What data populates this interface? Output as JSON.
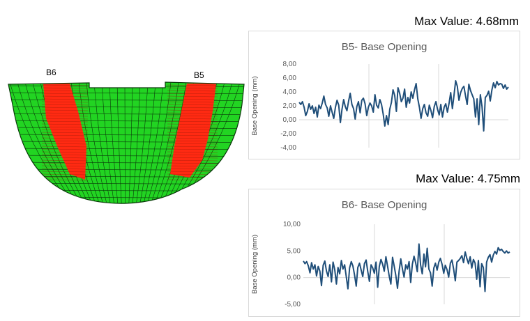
{
  "mesh": {
    "labels": {
      "left": "B6",
      "right": "B5"
    },
    "colors": {
      "body": "#22d422",
      "highlight": "#ff2a12",
      "grid": "#0b3a0b"
    }
  },
  "top_panel": {
    "max_value_text": "Max Value: 4.68mm"
  },
  "bottom_panel": {
    "max_value_text": "Max Value: 4.75mm"
  },
  "chart_data": [
    {
      "type": "line",
      "title": "B5- Base Opening",
      "ylabel": "Base Opening (mm)",
      "xlabel": "",
      "ylim": [
        -4,
        8
      ],
      "yticks": [
        "-4,00",
        "-2,00",
        "0,00",
        "2,00",
        "4,00",
        "6,00",
        "8,00"
      ],
      "ytick_values": [
        -4,
        -2,
        0,
        2,
        4,
        6,
        8
      ],
      "grid": "vertical",
      "line_color": "#1f4e79",
      "series": [
        {
          "values": [
            2.5,
            2.2,
            2.6,
            1.8,
            0.6,
            1.2,
            2.3,
            1.5,
            2.0,
            0.9,
            1.8,
            0.4,
            2.1,
            1.6,
            2.4,
            3.4,
            2.2,
            1.7,
            0.5,
            2.0,
            1.1,
            0.2,
            1.8,
            2.8,
            2.1,
            -0.4,
            1.5,
            2.9,
            1.9,
            1.3,
            2.7,
            3.8,
            2.2,
            1.6,
            0.1,
            1.9,
            2.6,
            1.0,
            2.8,
            3.1,
            2.3,
            0.6,
            1.8,
            2.4,
            2.0,
            1.1,
            3.6,
            2.1,
            1.7,
            2.9,
            2.2,
            0.8,
            -0.9,
            0.6,
            -0.7,
            1.5,
            2.5,
            4.3,
            3.5,
            1.2,
            4.6,
            3.8,
            2.6,
            3.1,
            4.4,
            1.8,
            3.2,
            2.4,
            4.0,
            3.1,
            4.3,
            5.2,
            3.0,
            1.8,
            0.2,
            1.6,
            2.2,
            1.0,
            0.5,
            2.1,
            1.3,
            0.3,
            1.9,
            2.6,
            1.5,
            0.7,
            2.2,
            0.4,
            1.8,
            2.3,
            1.1,
            2.4,
            3.9,
            1.6,
            3.5,
            5.6,
            4.8,
            2.8,
            3.9,
            4.5,
            4.8,
            3.4,
            2.2,
            5.1,
            4.2,
            3.6,
            3.0,
            0.4,
            3.0,
            -0.7,
            3.6,
            1.9,
            -1.6,
            3.2,
            3.5,
            4.1,
            2.7,
            4.3,
            5.3,
            4.6,
            5.5,
            5.0,
            5.2,
            5.1,
            4.5,
            5.0,
            4.4,
            4.7
          ]
        }
      ]
    },
    {
      "type": "line",
      "title": "B6- Base Opening",
      "ylabel": "Base Opening (mm)",
      "xlabel": "",
      "ylim": [
        -5,
        10
      ],
      "yticks": [
        "-5,00",
        "0,00",
        "5,00",
        "10,00"
      ],
      "ytick_values": [
        -5,
        0,
        5,
        10
      ],
      "grid": "vertical",
      "line_color": "#1f4e79",
      "series": [
        {
          "values": [
            3.1,
            2.6,
            3.0,
            2.2,
            0.9,
            2.8,
            1.6,
            2.4,
            0.3,
            2.1,
            1.2,
            -1.5,
            2.3,
            3.1,
            1.2,
            0.2,
            2.4,
            -0.8,
            2.9,
            1.5,
            -1.2,
            1.9,
            0.7,
            3.2,
            1.6,
            2.4,
            0.1,
            -2.1,
            1.8,
            3.0,
            2.2,
            0.5,
            -1.6,
            1.9,
            2.7,
            1.4,
            0.2,
            2.6,
            3.3,
            1.1,
            -0.7,
            2.4,
            1.8,
            0.8,
            2.9,
            -1.8,
            2.1,
            3.4,
            2.5,
            1.2,
            3.9,
            2.1,
            0.3,
            -1.2,
            3.8,
            2.2,
            0.4,
            -2.0,
            1.2,
            3.5,
            1.6,
            0.1,
            2.4,
            1.6,
            3.0,
            -0.9,
            2.5,
            4.0,
            2.8,
            1.1,
            6.3,
            2.4,
            0.7,
            4.4,
            2.0,
            5.5,
            1.6,
            0.9,
            -1.6,
            1.8,
            2.7,
            1.4,
            2.9,
            3.6,
            2.5,
            0.8,
            2.3,
            1.5,
            0.1,
            2.7,
            3.3,
            1.6,
            -0.6,
            2.9,
            3.2,
            3.6,
            4.1,
            2.8,
            4.8,
            3.6,
            2.6,
            3.9,
            1.8,
            3.4,
            2.7,
            -0.3,
            3.2,
            -1.7,
            2.6,
            1.9,
            -2.6,
            2.9,
            3.8,
            4.3,
            2.9,
            4.2,
            4.9,
            4.4,
            5.6,
            5.1,
            5.3,
            4.9,
            4.6,
            5.0,
            4.6,
            4.8
          ]
        }
      ]
    }
  ]
}
